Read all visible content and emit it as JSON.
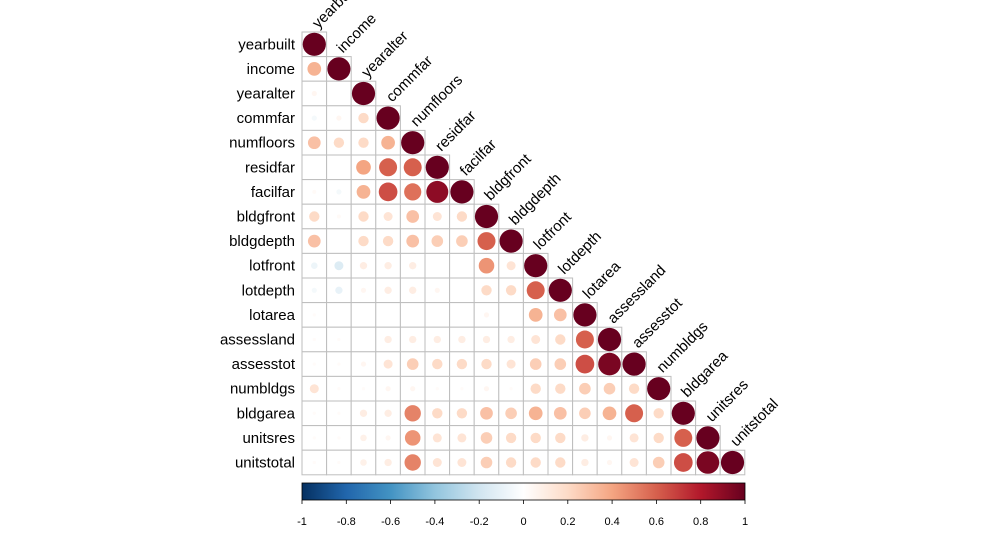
{
  "chart_data": {
    "type": "heatmap",
    "style": "corrplot-circle-lower",
    "variables": [
      "yearbuilt",
      "income",
      "yearalter",
      "commfar",
      "numfloors",
      "residfar",
      "facilfar",
      "bldgfront",
      "bldgdepth",
      "lotfront",
      "lotdepth",
      "lotarea",
      "assessland",
      "assesstot",
      "numbldgs",
      "bldgarea",
      "unitsres",
      "unitstotal"
    ],
    "matrix": [
      [
        1
      ],
      [
        0.35,
        1
      ],
      [
        0.05,
        0.0,
        1
      ],
      [
        -0.05,
        0.05,
        0.2,
        1
      ],
      [
        0.3,
        0.2,
        0.2,
        0.35,
        1
      ],
      [
        0.0,
        0.0,
        0.4,
        0.6,
        0.6,
        1
      ],
      [
        0.03,
        -0.05,
        0.35,
        0.65,
        0.55,
        0.9,
        1
      ],
      [
        0.2,
        0.03,
        0.2,
        0.15,
        0.3,
        0.15,
        0.2,
        1
      ],
      [
        0.3,
        0.0,
        0.2,
        0.2,
        0.3,
        0.25,
        0.25,
        0.6,
        1
      ],
      [
        -0.08,
        -0.15,
        0.1,
        0.1,
        0.1,
        0.0,
        0.0,
        0.45,
        0.15,
        1
      ],
      [
        -0.05,
        -0.1,
        0.05,
        0.1,
        0.1,
        0.05,
        0.0,
        0.2,
        0.2,
        0.6,
        1
      ],
      [
        0.02,
        0.0,
        0.0,
        0.0,
        0.0,
        0.0,
        0.0,
        0.05,
        0.0,
        0.35,
        0.3,
        1
      ],
      [
        0.02,
        0.02,
        0.0,
        0.1,
        0.1,
        0.1,
        0.1,
        0.1,
        0.1,
        0.15,
        0.2,
        0.6,
        1
      ],
      [
        0.02,
        0.02,
        0.05,
        0.15,
        0.25,
        0.2,
        0.2,
        0.2,
        0.15,
        0.25,
        0.25,
        0.65,
        0.95,
        1
      ],
      [
        0.15,
        0.02,
        0.02,
        0.05,
        0.05,
        0.02,
        0.02,
        0.05,
        0.02,
        0.2,
        0.2,
        0.25,
        0.25,
        0.2,
        1
      ],
      [
        0.02,
        0.02,
        0.1,
        0.1,
        0.5,
        0.2,
        0.2,
        0.3,
        0.25,
        0.35,
        0.3,
        0.25,
        0.35,
        0.6,
        0.2,
        1
      ],
      [
        0.02,
        0.02,
        0.08,
        0.05,
        0.45,
        0.15,
        0.15,
        0.25,
        0.2,
        0.2,
        0.2,
        0.1,
        0.05,
        0.15,
        0.2,
        0.6,
        1
      ],
      [
        0.02,
        0.02,
        0.08,
        0.1,
        0.5,
        0.15,
        0.15,
        0.25,
        0.2,
        0.2,
        0.2,
        0.1,
        0.05,
        0.15,
        0.25,
        0.65,
        0.95,
        1
      ]
    ],
    "colorbar": {
      "range": [
        -1,
        1
      ],
      "ticks": [
        "-1",
        "-0.8",
        "-0.6",
        "-0.4",
        "-0.2",
        "0",
        "0.2",
        "0.4",
        "0.6",
        "0.8",
        "1"
      ]
    },
    "colors": {
      "negative_end": "#053061",
      "neutral": "#ffffff",
      "positive_end": "#67001f",
      "grid": "#bebebe"
    }
  }
}
